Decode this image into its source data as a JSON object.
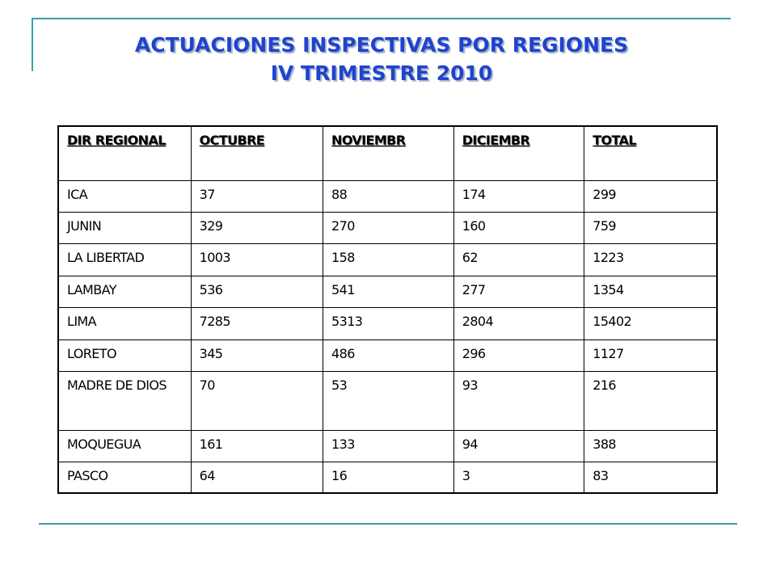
{
  "slide": {
    "title_line1": "ACTUACIONES INSPECTIVAS POR REGIONES",
    "title_line2": "IV TRIMESTRE 2010"
  },
  "table": {
    "headers": [
      "DIR REGIONAL",
      "OCTUBRE",
      "NOVIEMBR",
      "DICIEMBR",
      "TOTAL"
    ],
    "rows": [
      [
        "ICA",
        "37",
        "88",
        "174",
        "299"
      ],
      [
        "JUNIN",
        "329",
        "270",
        "160",
        "759"
      ],
      [
        "LA LIBERTAD",
        "1003",
        "158",
        "62",
        "1223"
      ],
      [
        "LAMBAY",
        "536",
        "541",
        "277",
        "1354"
      ],
      [
        "LIMA",
        "7285",
        "5313",
        "2804",
        "15402"
      ],
      [
        "LORETO",
        "345",
        "486",
        "296",
        "1127"
      ],
      [
        "MADRE DE DIOS",
        "70",
        "53",
        "93",
        "216"
      ],
      [
        "MOQUEGUA",
        "161",
        "133",
        "94",
        "388"
      ],
      [
        "PASCO",
        "64",
        "16",
        "3",
        "83"
      ]
    ]
  },
  "colors": {
    "title": "#1f44cc",
    "rule": "#3d9da8"
  }
}
